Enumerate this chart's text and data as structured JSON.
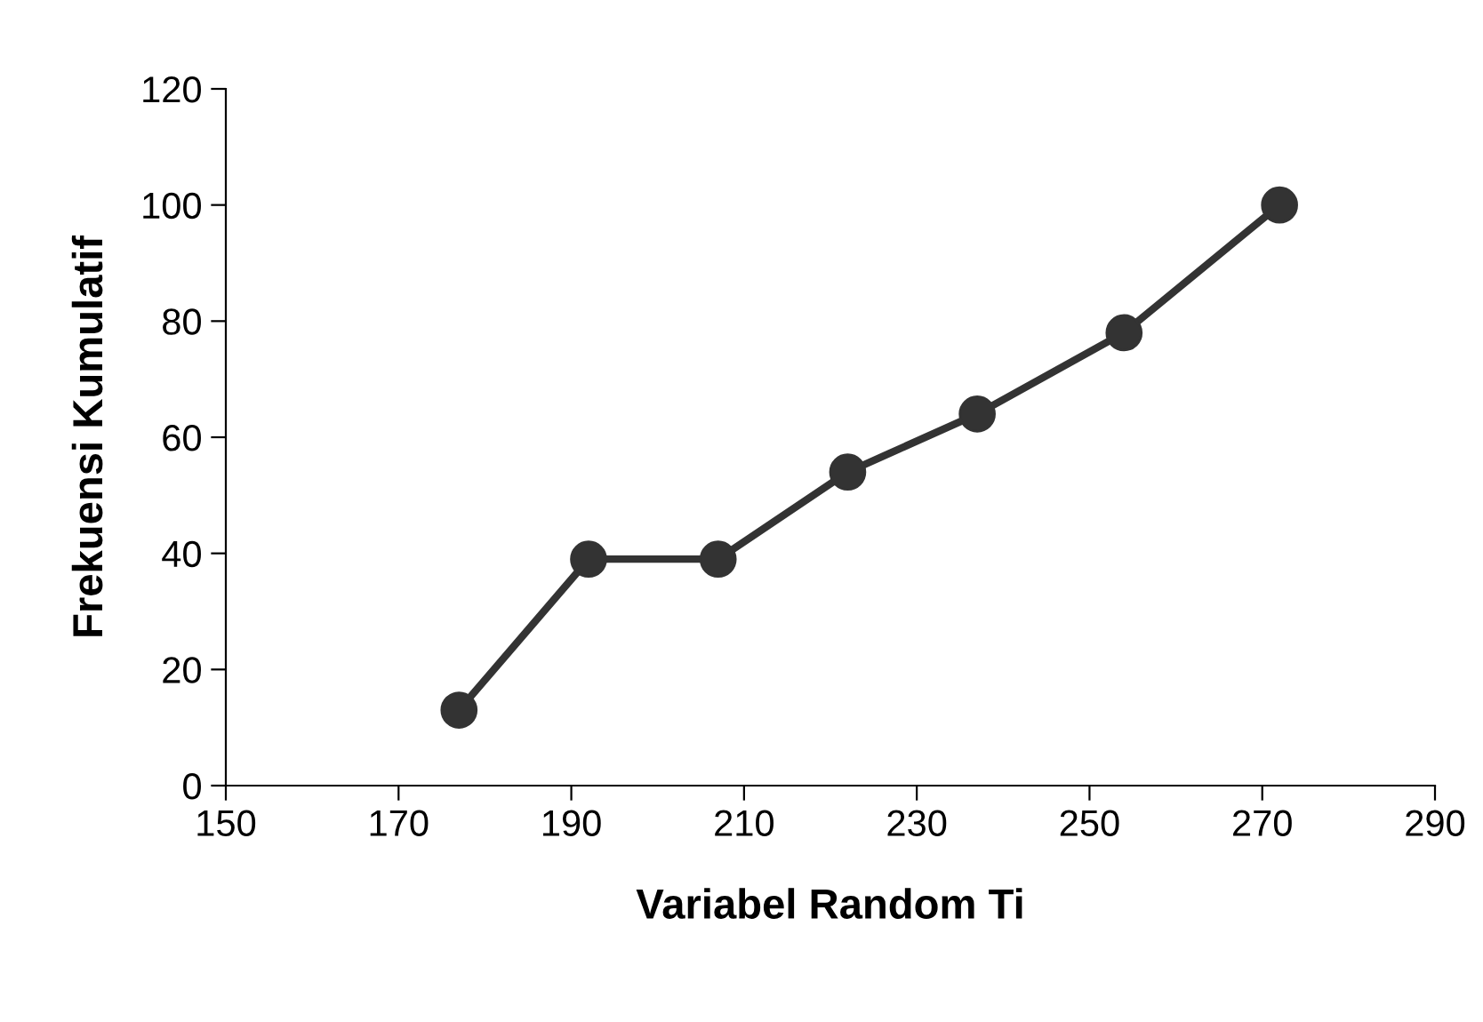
{
  "chart_data": {
    "type": "line",
    "xlabel": "Variabel Random Ti",
    "ylabel": "Frekuensi Kumulatif",
    "series": [
      {
        "color": "#333333",
        "x": [
          177,
          192,
          207,
          222,
          237,
          254,
          272
        ],
        "values": [
          13,
          39,
          39,
          54,
          64,
          78,
          100
        ]
      }
    ],
    "xlim": [
      150,
      290
    ],
    "xticks": [
      150,
      170,
      190,
      210,
      230,
      250,
      270,
      290
    ],
    "ylim": [
      0,
      120
    ],
    "yticks": [
      0,
      20,
      40,
      60,
      80,
      100,
      120
    ],
    "marker": "circle",
    "line_style": "solid",
    "grid": false,
    "legend": false
  }
}
